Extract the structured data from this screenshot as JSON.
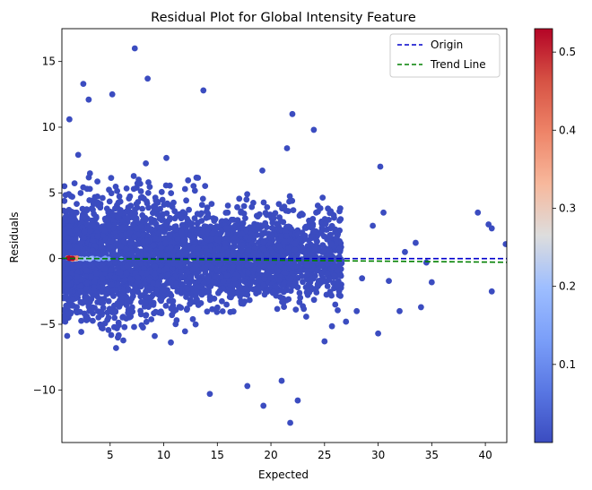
{
  "chart_data": {
    "type": "scatter",
    "title": "Residual Plot for Global Intensity Feature",
    "xlabel": "Expected",
    "ylabel": "Residuals",
    "xlim": [
      0.5,
      42
    ],
    "ylim": [
      -14,
      17.5
    ],
    "xticks": [
      5,
      10,
      15,
      20,
      25,
      30,
      35,
      40
    ],
    "yticks": [
      -10,
      -5,
      0,
      5,
      10,
      15
    ],
    "grid": false,
    "legend_position": "top-right",
    "legend": [
      {
        "label": "Origin",
        "color": "#0000cc",
        "style": "dashed"
      },
      {
        "label": "Trend Line",
        "color": "#008000",
        "style": "dashed"
      }
    ],
    "lines": {
      "origin": {
        "x": [
          0.5,
          42
        ],
        "y": [
          0,
          0
        ]
      },
      "trend": {
        "x": [
          0.5,
          42
        ],
        "y": [
          0.02,
          -0.28
        ]
      }
    },
    "colorbar": {
      "colormap": "coolwarm",
      "min": 0.0,
      "max": 0.53,
      "ticks": [
        0.1,
        0.2,
        0.3,
        0.4,
        0.5
      ]
    },
    "outliers": [
      {
        "x": 7.3,
        "y": 16.0
      },
      {
        "x": 8.5,
        "y": 13.7
      },
      {
        "x": 2.5,
        "y": 13.3
      },
      {
        "x": 13.7,
        "y": 12.8
      },
      {
        "x": 5.2,
        "y": 12.5
      },
      {
        "x": 3.0,
        "y": 12.1
      },
      {
        "x": 22.0,
        "y": 11.0
      },
      {
        "x": 24.0,
        "y": 9.8
      },
      {
        "x": 21.5,
        "y": 8.4
      },
      {
        "x": 1.2,
        "y": 10.6
      },
      {
        "x": 19.2,
        "y": 6.7
      },
      {
        "x": 30.2,
        "y": 7.0
      },
      {
        "x": 39.3,
        "y": 3.5
      },
      {
        "x": 41.9,
        "y": 1.1
      },
      {
        "x": 40.3,
        "y": 2.6
      },
      {
        "x": 40.6,
        "y": 2.3
      },
      {
        "x": 30.5,
        "y": 3.5
      },
      {
        "x": 33.5,
        "y": 1.2
      },
      {
        "x": 32.5,
        "y": 0.5
      },
      {
        "x": 34.5,
        "y": -0.3
      },
      {
        "x": 35.0,
        "y": -1.8
      },
      {
        "x": 31.0,
        "y": -1.7
      },
      {
        "x": 32.0,
        "y": -4.0
      },
      {
        "x": 34.0,
        "y": -3.7
      },
      {
        "x": 40.6,
        "y": -2.5
      },
      {
        "x": 30.0,
        "y": -5.7
      },
      {
        "x": 28.0,
        "y": -4.0
      },
      {
        "x": 27.0,
        "y": -4.8
      },
      {
        "x": 25.0,
        "y": -6.3
      },
      {
        "x": 22.5,
        "y": -10.8
      },
      {
        "x": 21.8,
        "y": -12.5
      },
      {
        "x": 19.3,
        "y": -11.2
      },
      {
        "x": 14.3,
        "y": -10.3
      },
      {
        "x": 17.8,
        "y": -9.7
      },
      {
        "x": 21.0,
        "y": -9.3
      },
      {
        "x": 26.0,
        "y": -3.5
      },
      {
        "x": 28.5,
        "y": -1.5
      },
      {
        "x": 29.5,
        "y": 2.5
      },
      {
        "x": 26.5,
        "y": 3.0
      }
    ]
  }
}
